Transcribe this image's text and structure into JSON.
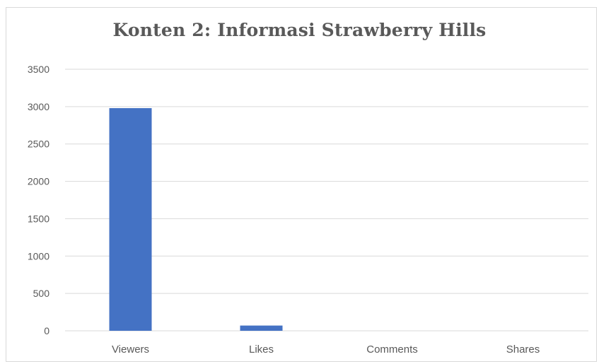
{
  "chart_data": {
    "type": "bar",
    "title": "Konten 2: Informasi Strawberry Hills",
    "xlabel": "",
    "ylabel": "",
    "categories": [
      "Viewers",
      "Likes",
      "Comments",
      "Shares"
    ],
    "values": [
      2980,
      70,
      0,
      0
    ],
    "ylim": [
      0,
      3500
    ],
    "yticks": [
      0,
      500,
      1000,
      1500,
      2000,
      2500,
      3000,
      3500
    ],
    "grid": true,
    "legend": "none",
    "colors": {
      "bar": "#4472c4",
      "grid": "#d9d9d9",
      "text": "#595959"
    }
  }
}
